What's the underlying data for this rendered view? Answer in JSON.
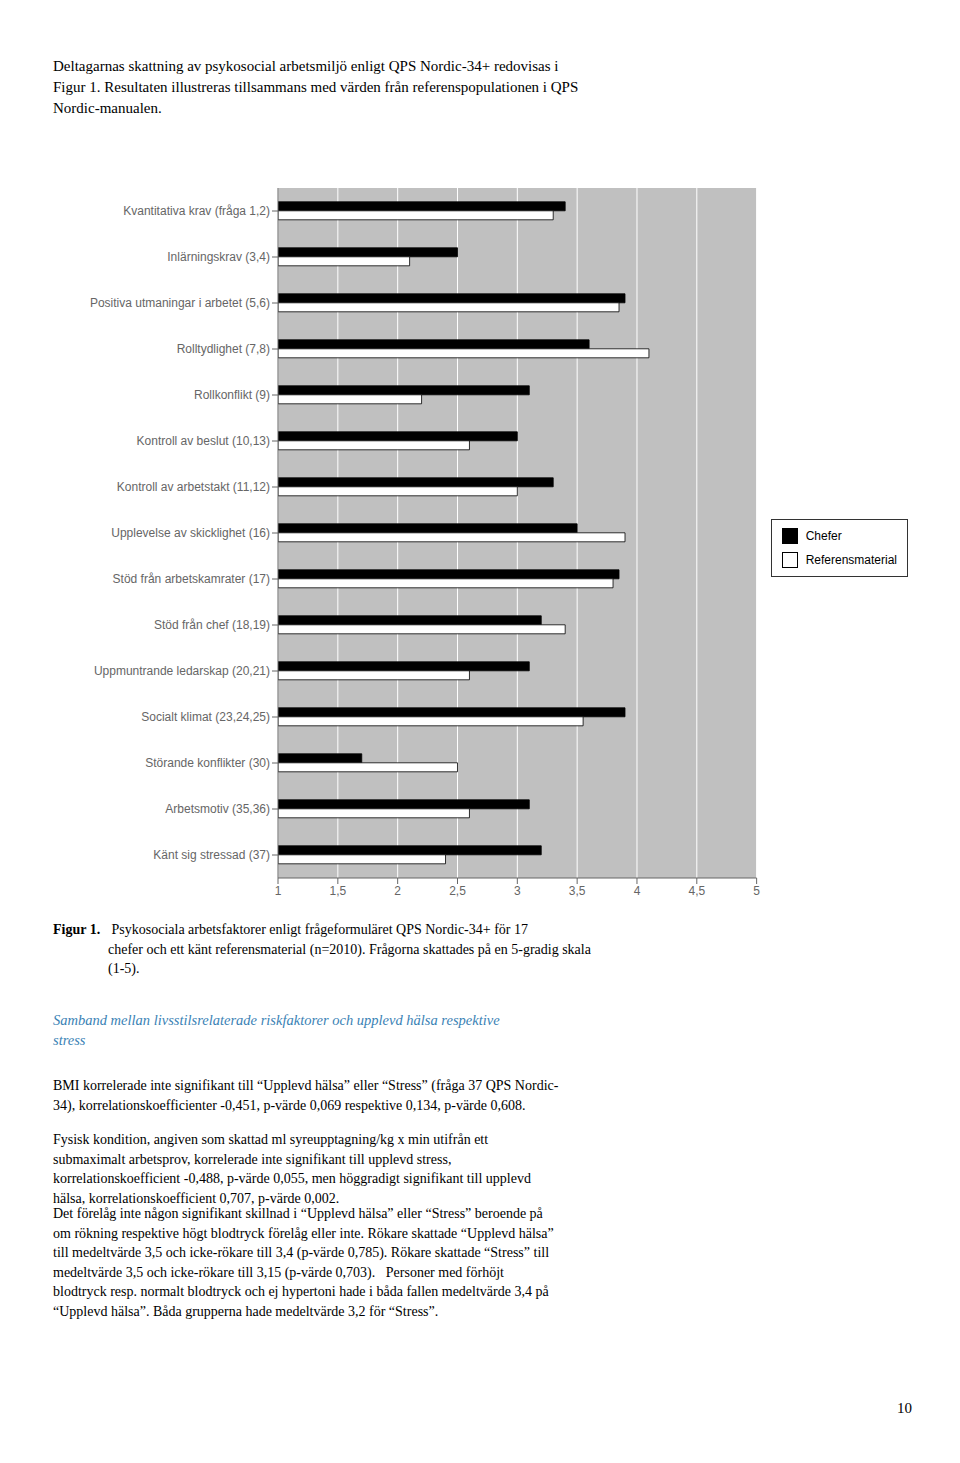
{
  "chart_data": {
    "type": "bar",
    "orientation": "horizontal",
    "categories": [
      "Kvantitativa krav (fråga 1,2)",
      "Inlärningskrav (3,4)",
      "Positiva utmaningar i arbetet (5,6)",
      "Rolltydlighet (7,8)",
      "Rollkonflikt (9)",
      "Kontroll av beslut (10,13)",
      "Kontroll av arbetstakt (11,12)",
      "Upplevelse av skicklighet (16)",
      "Stöd från arbetskamrater (17)",
      "Stöd från chef (18,19)",
      "Uppmuntrande ledarskap (20,21)",
      "Socialt klimat (23,24,25)",
      "Störande konflikter (30)",
      "Arbetsmotiv (35,36)",
      "Känt sig stressad (37)"
    ],
    "series": [
      {
        "name": "Chefer",
        "color": "#000000",
        "values": [
          3.4,
          2.5,
          3.9,
          3.6,
          3.1,
          3.0,
          3.3,
          3.5,
          3.85,
          3.2,
          3.1,
          3.9,
          1.7,
          3.1,
          3.2
        ]
      },
      {
        "name": "Referensmaterial",
        "color": "#ffffff",
        "values": [
          3.3,
          2.1,
          3.85,
          4.1,
          2.2,
          2.6,
          3.0,
          3.9,
          3.8,
          3.4,
          2.6,
          3.55,
          2.5,
          2.6,
          2.4
        ]
      }
    ],
    "xlim": [
      1,
      5
    ],
    "xticks": [
      1,
      {
        "value": 1.5,
        "label": "1,5"
      },
      2,
      {
        "value": 2.5,
        "label": "2,5"
      },
      3,
      {
        "value": 3.5,
        "label": "3,5"
      },
      4,
      {
        "value": 4.5,
        "label": "4,5"
      },
      5
    ],
    "grid": true,
    "legend": "right",
    "annotations": [
      "Deltagarnas skattning av psykosocial arbetsmiljö enligt QPS Nordic-34+ redovisas i\nFigur 1. Resultaten illustreras tillsammans med värden från referenspopulationen i QPS\nNordic-manualen.",
      "Figur 1.",
      " Psykosociala arbetsfaktorer enligt frågeformuläret QPS Nordic-34+ för 17\nchefer och ett känt referensmaterial (n=2010). Frågorna skattades på en 5-gradig skala\n(1-5).",
      "Samband mellan livsstilsrelaterade riskfaktorer och upplevd hälsa respektive\nstress",
      "BMI korrelerade inte signifikant till “Upplevd hälsa” eller “Stress” (fråga 37 QPS Nordic-\n34), korrelationskoefficienter -0,451, p-värde 0,069 respektive 0,134, p-värde 0,608.",
      "Fysisk kondition, angiven som skattad ml syreupptagning/kg x min utifrån ett\nsubmaximalt arbetsprov, korrelerade inte signifikant till upplevd stress,\nkorrelationskoefficient -0,488, p-värde 0,055, men höggradigt signifikant till upplevd\nhälsa, korrelationskoefficient 0,707, p-värde 0,002.",
      "Det förelåg inte någon signifikant skillnad i “Upplevd hälsa” eller “Stress” beroende på\nom rökning respektive högt blodtryck förelåg eller inte. Rökare skattade “Upplevd hälsa”\ntill medeltvärde 3,5 och icke-rökare till 3,4 (p-värde 0,785). Rökare skattade “Stress” till\nmedeltvärde 3,5 och icke-rökare till 3,15 (p-värde 0,703).   Personer med förhöjt\nblodtryck resp. normalt blodtryck och ej hypertoni hade i båda fallen medeltvärde 3,4 på\n“Upplevd hälsa”. Båda grupperna hade medeltvärde 3,2 för “Stress”.",
      "10"
    ]
  }
}
